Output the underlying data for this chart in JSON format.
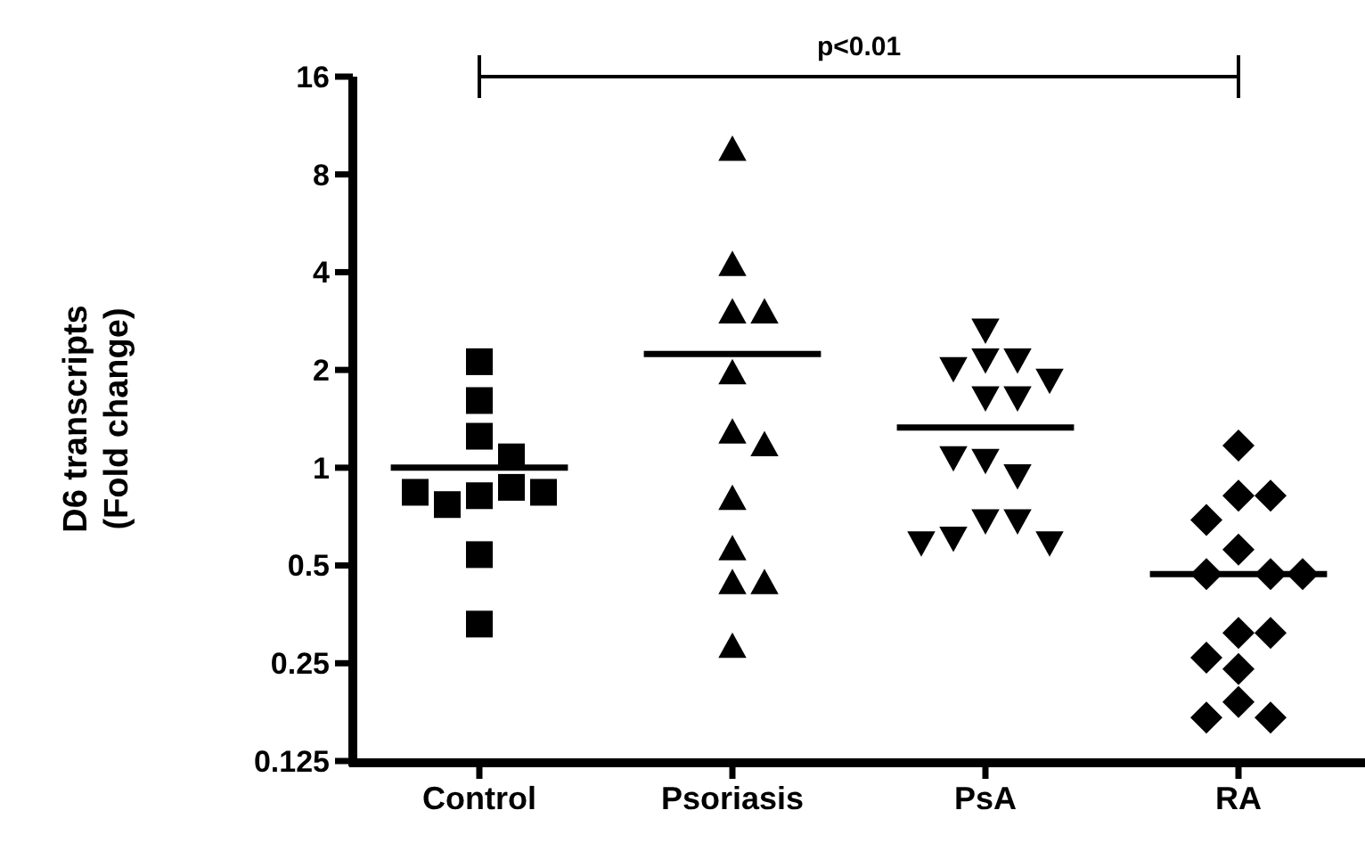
{
  "chart_data": {
    "type": "scatter",
    "ylabel": "D6 transcripts\n(Fold change)",
    "categories": [
      "Control",
      "Psoriasis",
      "PsA",
      "RA"
    ],
    "log": "y",
    "ylim": [
      0.125,
      16
    ],
    "yticks": [
      0.125,
      0.25,
      0.5,
      1,
      2,
      4,
      8,
      16
    ],
    "grid": false,
    "legend": false,
    "series": [
      {
        "type": "box",
        "color": "#000000",
        "boxes": [
          {
            "low": 1.0,
            "q1": 1.0,
            "median": 1.0,
            "q3": 1.0,
            "high": 1.0
          },
          {
            "low": 2.24,
            "q1": 2.24,
            "median": 2.24,
            "q3": 2.24,
            "high": 2.24
          },
          {
            "low": 1.33,
            "q1": 1.33,
            "median": 1.33,
            "q3": 1.33,
            "high": 1.33
          },
          {
            "low": 0.47,
            "q1": 0.47,
            "median": 0.47,
            "q3": 0.47,
            "high": 0.47
          }
        ]
      },
      {
        "type": "scatter",
        "marker": "square",
        "color": "#000000",
        "x": [
          "Control",
          "Control",
          "Control",
          "Control",
          "Control",
          "Control",
          "Control",
          "Control",
          "Control",
          "Control",
          "Control"
        ],
        "values": [
          2.12,
          1.61,
          1.25,
          1.08,
          0.82,
          0.87,
          0.77,
          0.84,
          0.84,
          0.54,
          0.33
        ]
      },
      {
        "type": "scatter",
        "marker": "triangle",
        "color": "#000000",
        "x": [
          "Psoriasis",
          "Psoriasis",
          "Psoriasis",
          "Psoriasis",
          "Psoriasis",
          "Psoriasis",
          "Psoriasis",
          "Psoriasis",
          "Psoriasis",
          "Psoriasis",
          "Psoriasis",
          "Psoriasis"
        ],
        "values": [
          9.5,
          4.2,
          3.0,
          3.0,
          1.95,
          1.28,
          1.17,
          0.8,
          0.56,
          0.44,
          0.44,
          0.28
        ]
      },
      {
        "type": "scatter",
        "marker": "triangle-down",
        "color": "#000000",
        "x": [
          "PsA",
          "PsA",
          "PsA",
          "PsA",
          "PsA",
          "PsA",
          "PsA",
          "PsA",
          "PsA",
          "PsA",
          "PsA",
          "PsA",
          "PsA",
          "PsA",
          "PsA"
        ],
        "values": [
          2.67,
          2.16,
          2.16,
          2.03,
          1.87,
          1.65,
          1.65,
          1.06,
          0.95,
          1.08,
          0.69,
          0.69,
          0.61,
          0.59,
          0.59
        ]
      },
      {
        "type": "scatter",
        "marker": "diamond",
        "color": "#000000",
        "x": [
          "RA",
          "RA",
          "RA",
          "RA",
          "RA",
          "RA",
          "RA",
          "RA",
          "RA",
          "RA",
          "RA",
          "RA",
          "RA",
          "RA",
          "RA"
        ],
        "values": [
          1.17,
          0.82,
          0.82,
          0.69,
          0.56,
          0.47,
          0.47,
          0.47,
          0.31,
          0.31,
          0.26,
          0.24,
          0.19,
          0.17,
          0.17
        ]
      }
    ],
    "annotations": [
      "p<0.01"
    ]
  }
}
